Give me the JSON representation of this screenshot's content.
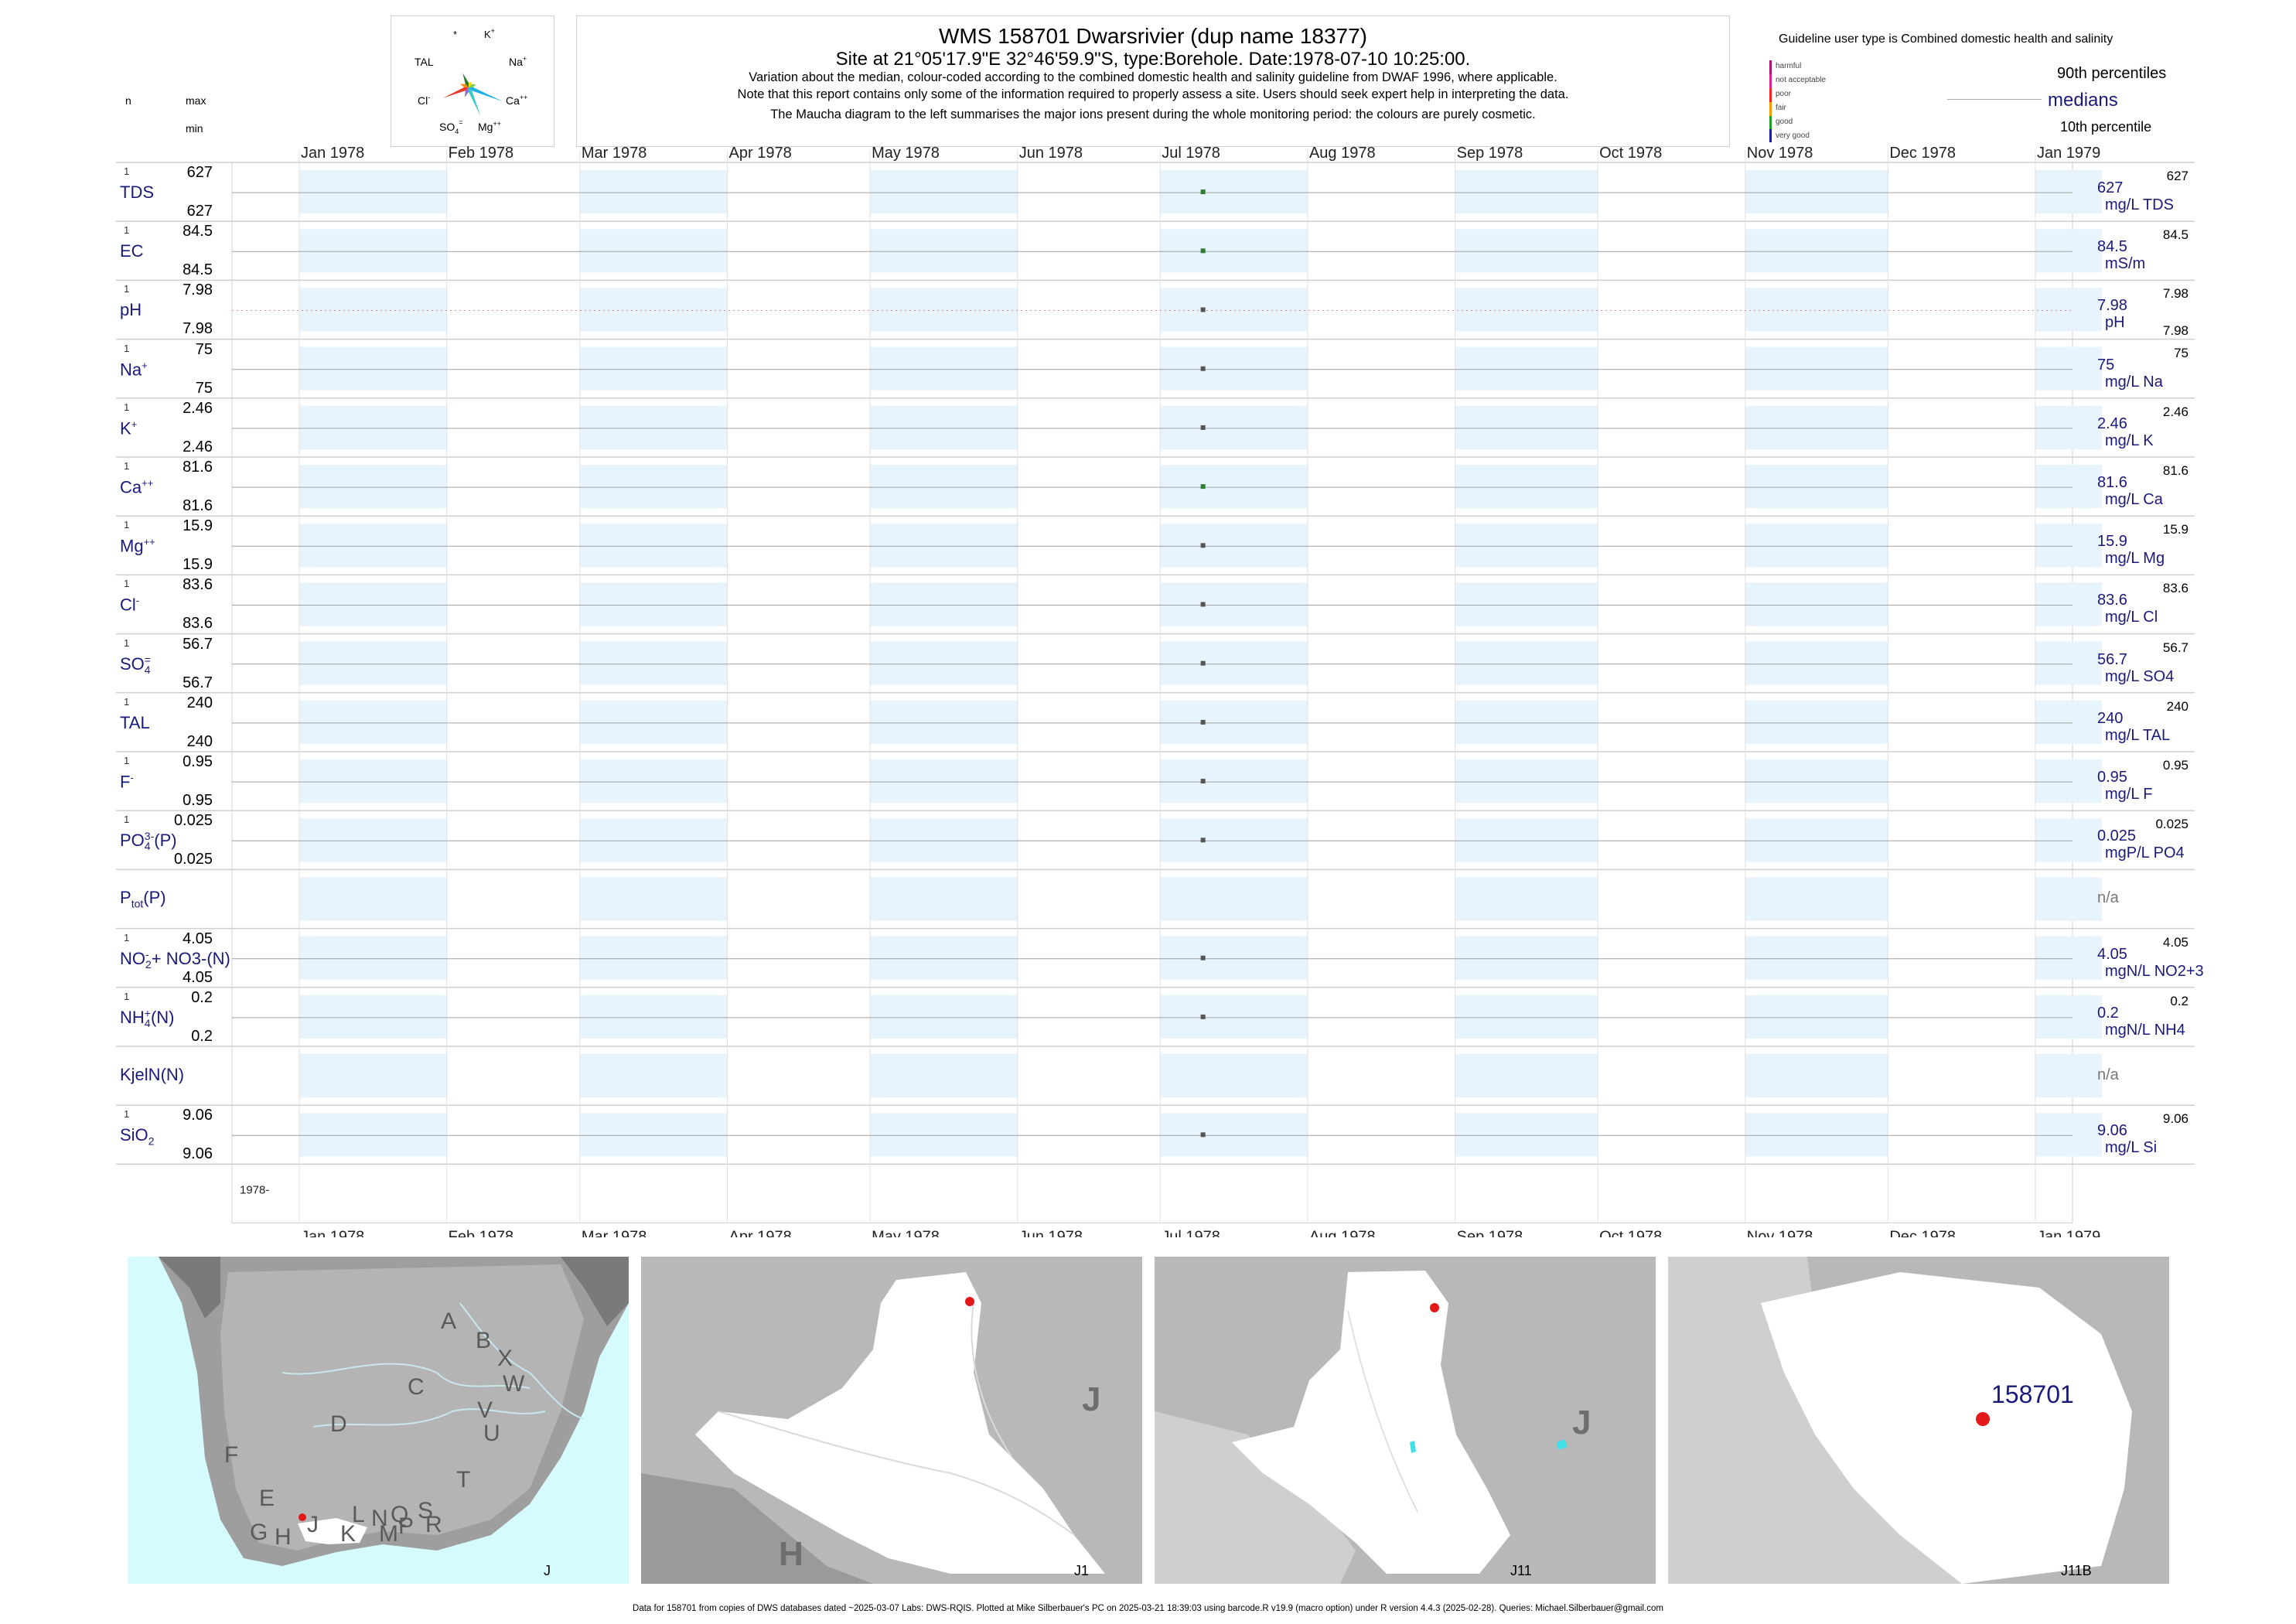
{
  "header": {
    "left_n": "n",
    "left_max": "max",
    "left_min": "min",
    "title": "WMS 158701  Dwarsrivier (dup name 18377)",
    "subtitle": "Site at 21°05'17.9\"E 32°46'59.9\"S, type:Borehole. Date:1978-07-10 10:25:00.",
    "note1": "Variation about the median,  colour-coded according to the combined domestic health and salinity guideline from DWAF 1996, where applicable.",
    "note2": "Note that this report contains only some of the information required to properly assess a site. Users should seek expert help in interpreting the data.",
    "note3": "The Maucha diagram to the left summarises the major ions present during the whole monitoring period: the colours are purely cosmetic.",
    "guideline": "Guideline user type is Combined domestic health and salinity",
    "p90": "90th percentiles",
    "medians": "medians",
    "p10": "10th percentile"
  },
  "maucha": {
    "labels": [
      "*",
      "K+",
      "TAL",
      "Na+",
      "Cl-",
      "Ca++",
      "SO4=",
      "Mg++"
    ],
    "colors": [
      "#f2e000",
      "#7fd14a",
      "#1fb0e8",
      "#3cc8c8",
      "#9b6bd8",
      "#e83a2a",
      "#ff8a1a",
      "#2a7a2a"
    ]
  },
  "legend": {
    "items": [
      "harmful",
      "not acceptable",
      "poor",
      "fair",
      "good",
      "very good"
    ],
    "colors": [
      "#b01470",
      "#e0209a",
      "#ff2020",
      "#ff9a00",
      "#20a020",
      "#1a1aa0"
    ]
  },
  "chart_data": {
    "type": "scatter",
    "months": [
      "Jan 1978",
      "Feb 1978",
      "Mar 1978",
      "Apr 1978",
      "May 1978",
      "Jun 1978",
      "Jul 1978",
      "Aug 1978",
      "Sep 1978",
      "Oct 1978",
      "Nov 1978",
      "Dec 1978",
      "Jan 1979"
    ],
    "year_label": "1978-",
    "sample_date": "1978-07-10",
    "rows": [
      {
        "label": "TDS",
        "sup": "",
        "sub": "",
        "n": "1",
        "max": "627",
        "min": "627",
        "value": "627",
        "unit": "mg/L TDS",
        "rmax": "627",
        "rmin": "",
        "color": "#2e7d32"
      },
      {
        "label": "EC",
        "sup": "",
        "sub": "",
        "n": "1",
        "max": "84.5",
        "min": "84.5",
        "value": "84.5",
        "unit": "mS/m",
        "rmax": "84.5",
        "rmin": "",
        "color": "#2e7d32"
      },
      {
        "label": "pH",
        "sup": "",
        "sub": "",
        "n": "1",
        "max": "7.98",
        "min": "7.98",
        "value": "7.98",
        "unit": "pH",
        "rmax": "7.98",
        "rmin": "7.98",
        "color": "#555555",
        "dotted": true
      },
      {
        "label": "Na",
        "sup": "+",
        "sub": "",
        "n": "1",
        "max": "75",
        "min": "75",
        "value": "75",
        "unit": "mg/L Na",
        "rmax": "75",
        "rmin": "",
        "color": "#555555"
      },
      {
        "label": "K",
        "sup": "+",
        "sub": "",
        "n": "1",
        "max": "2.46",
        "min": "2.46",
        "value": "2.46",
        "unit": "mg/L K",
        "rmax": "2.46",
        "rmin": "",
        "color": "#555555"
      },
      {
        "label": "Ca",
        "sup": "++",
        "sub": "",
        "n": "1",
        "max": "81.6",
        "min": "81.6",
        "value": "81.6",
        "unit": "mg/L Ca",
        "rmax": "81.6",
        "rmin": "",
        "color": "#2e7d32"
      },
      {
        "label": "Mg",
        "sup": "++",
        "sub": "",
        "n": "1",
        "max": "15.9",
        "min": "15.9",
        "value": "15.9",
        "unit": "mg/L Mg",
        "rmax": "15.9",
        "rmin": "",
        "color": "#555555"
      },
      {
        "label": "Cl",
        "sup": "-",
        "sub": "",
        "n": "1",
        "max": "83.6",
        "min": "83.6",
        "value": "83.6",
        "unit": "mg/L Cl",
        "rmax": "83.6",
        "rmin": "",
        "color": "#555555"
      },
      {
        "label": "SO",
        "sup": "=",
        "sub": "4",
        "n": "1",
        "max": "56.7",
        "min": "56.7",
        "value": "56.7",
        "unit": "mg/L SO4",
        "rmax": "56.7",
        "rmin": "",
        "color": "#555555"
      },
      {
        "label": "TAL",
        "sup": "",
        "sub": "",
        "n": "1",
        "max": "240",
        "min": "240",
        "value": "240",
        "unit": "mg/L TAL",
        "rmax": "240",
        "rmin": "",
        "color": "#555555"
      },
      {
        "label": "F",
        "sup": "-",
        "sub": "",
        "n": "1",
        "max": "0.95",
        "min": "0.95",
        "value": "0.95",
        "unit": "mg/L F",
        "rmax": "0.95",
        "rmin": "",
        "color": "#555555"
      },
      {
        "label": "PO",
        "sup": "3-",
        "sub": "4",
        "tail": "(P)",
        "n": "1",
        "max": "0.025",
        "min": "0.025",
        "value": "0.025",
        "unit": "mgP/L PO4",
        "rmax": "0.025",
        "rmin": "",
        "color": "#555555"
      },
      {
        "label": "P",
        "sup": "",
        "sub": "tot",
        "tail": "(P)",
        "n": "",
        "max": "",
        "min": "",
        "value": "n/a",
        "unit": "",
        "rmax": "",
        "rmin": "",
        "color": "",
        "na": true
      },
      {
        "label": "NO",
        "sup": "-",
        "sub": "2",
        "tail": "+ NO3-(N)",
        "n": "1",
        "max": "4.05",
        "min": "4.05",
        "value": "4.05",
        "unit": "mgN/L NO2+3",
        "rmax": "4.05",
        "rmin": "",
        "color": "#555555"
      },
      {
        "label": "NH",
        "sup": "+",
        "sub": "4",
        "tail": "(N)",
        "n": "1",
        "max": "0.2",
        "min": "0.2",
        "value": "0.2",
        "unit": "mgN/L NH4",
        "rmax": "0.2",
        "rmin": "",
        "color": "#555555"
      },
      {
        "label": "KjelN(N)",
        "sup": "",
        "sub": "",
        "n": "",
        "max": "",
        "min": "",
        "value": "n/a",
        "unit": "",
        "rmax": "",
        "rmin": "",
        "color": "",
        "na": true
      },
      {
        "label": "SiO",
        "sup": "",
        "sub": "2",
        "n": "1",
        "max": "9.06",
        "min": "9.06",
        "value": "9.06",
        "unit": "mg/L Si",
        "rmax": "9.06",
        "rmin": "",
        "color": "#555555"
      }
    ]
  },
  "maps": {
    "regions": [
      "A",
      "B",
      "X",
      "W",
      "C",
      "V",
      "U",
      "D",
      "F",
      "E",
      "T",
      "S",
      "R",
      "Q",
      "P",
      "N",
      "M",
      "L",
      "K",
      "J",
      "G",
      "H"
    ],
    "map1_label": "J",
    "map2_big": "J",
    "map2_h": "H",
    "map2_label": "J1",
    "map3_big": "J",
    "map3_label": "J11",
    "map4_site": "158701",
    "map4_label": "J11B"
  },
  "footer": "Data for 158701 from copies of DWS databases dated ~2025-03-07 Labs: DWS-RQIS. Plotted at Mike Silberbauer's PC on 2025-03-21 18:39:03 using barcode.R v19.9 (macro option) under R version 4.4.3 (2025-02-28). Queries: Michael.Silberbauer@gmail.com"
}
